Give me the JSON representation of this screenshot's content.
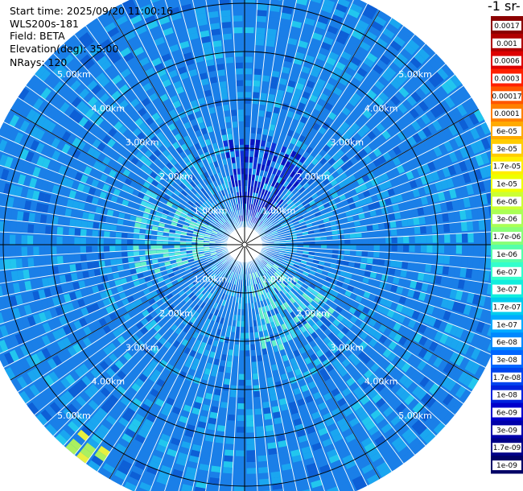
{
  "header": {
    "start_time": "Start time: 2025/09/20 11:00:16",
    "instrument": "WLS200s-181",
    "field": "Field: BETA",
    "elevation": "Elevation(deg): 35.00",
    "nrays": "NRays: 120"
  },
  "colorbar": {
    "unit_label": "-1 sr-",
    "ticks": [
      "0.0017",
      "0.001",
      "0.0006",
      "0.0003",
      "0.00017",
      "0.0001",
      "6e-05",
      "3e-05",
      "1.7e-05",
      "1e-05",
      "6e-06",
      "3e-06",
      "1.7e-06",
      "1e-06",
      "6e-07",
      "3e-07",
      "1.7e-07",
      "1e-07",
      "6e-08",
      "3e-08",
      "1.7e-08",
      "1e-08",
      "6e-09",
      "3e-09",
      "1.7e-09",
      "1e-09"
    ],
    "colors": [
      "#8b0000",
      "#b00000",
      "#dd0000",
      "#ff2000",
      "#ff5500",
      "#ff8000",
      "#ffaa00",
      "#ffcc00",
      "#ffee00",
      "#eeff00",
      "#ccff33",
      "#aaff55",
      "#88ff77",
      "#55ffaa",
      "#33ffcc",
      "#11eedd",
      "#00ccee",
      "#00aaff",
      "#0088ff",
      "#0066ff",
      "#0044ee",
      "#0022dd",
      "#0000cc",
      "#0000aa",
      "#000088",
      "#000066"
    ]
  },
  "chart_data": {
    "type": "heatmap",
    "projection": "polar-ppi",
    "field": "BETA",
    "elevation_deg": 35.0,
    "n_rays": 120,
    "range_rings_km": [
      1,
      2,
      3,
      4,
      5
    ],
    "ring_labels": [
      "1.00km",
      "2.00km",
      "3.00km",
      "4.00km",
      "5.00km"
    ],
    "max_range_km": 5.6,
    "azimuth_step_deg": 3,
    "dominant_value": "1e-07",
    "notes_regions": [
      {
        "where": "north, 0.5-2 km",
        "value": "3e-09"
      },
      {
        "where": "west and southeast, 0.5-2 km",
        "value": "1e-06"
      },
      {
        "where": "southwest, 5.2 km",
        "value": "1e-05"
      }
    ]
  }
}
